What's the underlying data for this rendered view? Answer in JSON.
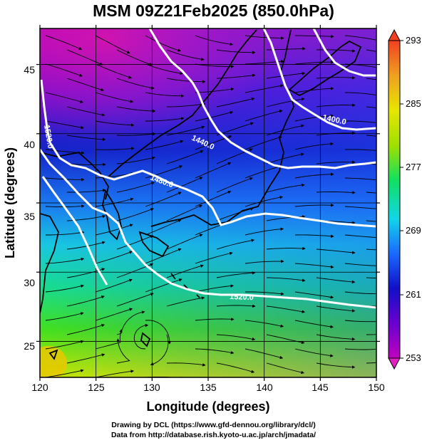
{
  "title": "MSM 09Z21Feb2025 (850.0hPa)",
  "xlabel": "Longitude (degrees)",
  "ylabel": "Latitude (degrees)",
  "x_ticks": [
    "120",
    "125",
    "130",
    "135",
    "140",
    "145",
    "150"
  ],
  "y_ticks": [
    "25",
    "30",
    "35",
    "40",
    "45"
  ],
  "colorbar": {
    "labels": [
      "293",
      "285",
      "277",
      "269",
      "261",
      "253"
    ],
    "range": [
      253,
      293
    ],
    "colors": [
      "#c000c0",
      "#6a00d0",
      "#1010c8",
      "#1a6aff",
      "#10d6e8",
      "#10e060",
      "#a0e000",
      "#e6e600",
      "#f0a020",
      "#f04020"
    ]
  },
  "contours": [
    {
      "label": "1400.0"
    },
    {
      "label": "1440.0"
    },
    {
      "label": "1480.0"
    },
    {
      "label": "1520.0"
    },
    {
      "label": "1520.0"
    }
  ],
  "credit": {
    "line1": "Drawing by DCL (https://www.gfd-dennou.org/library/dcl/)",
    "line2": "Data from http://database.rish.kyoto-u.ac.jp/arch/jmadata/"
  },
  "chart_data": {
    "type": "heatmap",
    "title": "MSM 09Z21Feb2025 (850.0hPa)",
    "xlabel": "Longitude (degrees)",
    "ylabel": "Latitude (degrees)",
    "xlim": [
      120,
      150
    ],
    "ylim": [
      22.4,
      47.6
    ],
    "x_ticks": [
      120,
      125,
      130,
      135,
      140,
      145,
      150
    ],
    "y_ticks": [
      25,
      30,
      35,
      40,
      45
    ],
    "colorbar_range": [
      253,
      293
    ],
    "colorbar_ticks": [
      253,
      261,
      269,
      277,
      285,
      293
    ],
    "grid": true,
    "overlays": [
      "temperature shading",
      "streamlines",
      "geopotential height contours",
      "coastlines"
    ],
    "contour_labels": [
      "1400.0",
      "1440.0",
      "1480.0",
      "1520.0",
      "1520.0"
    ]
  }
}
